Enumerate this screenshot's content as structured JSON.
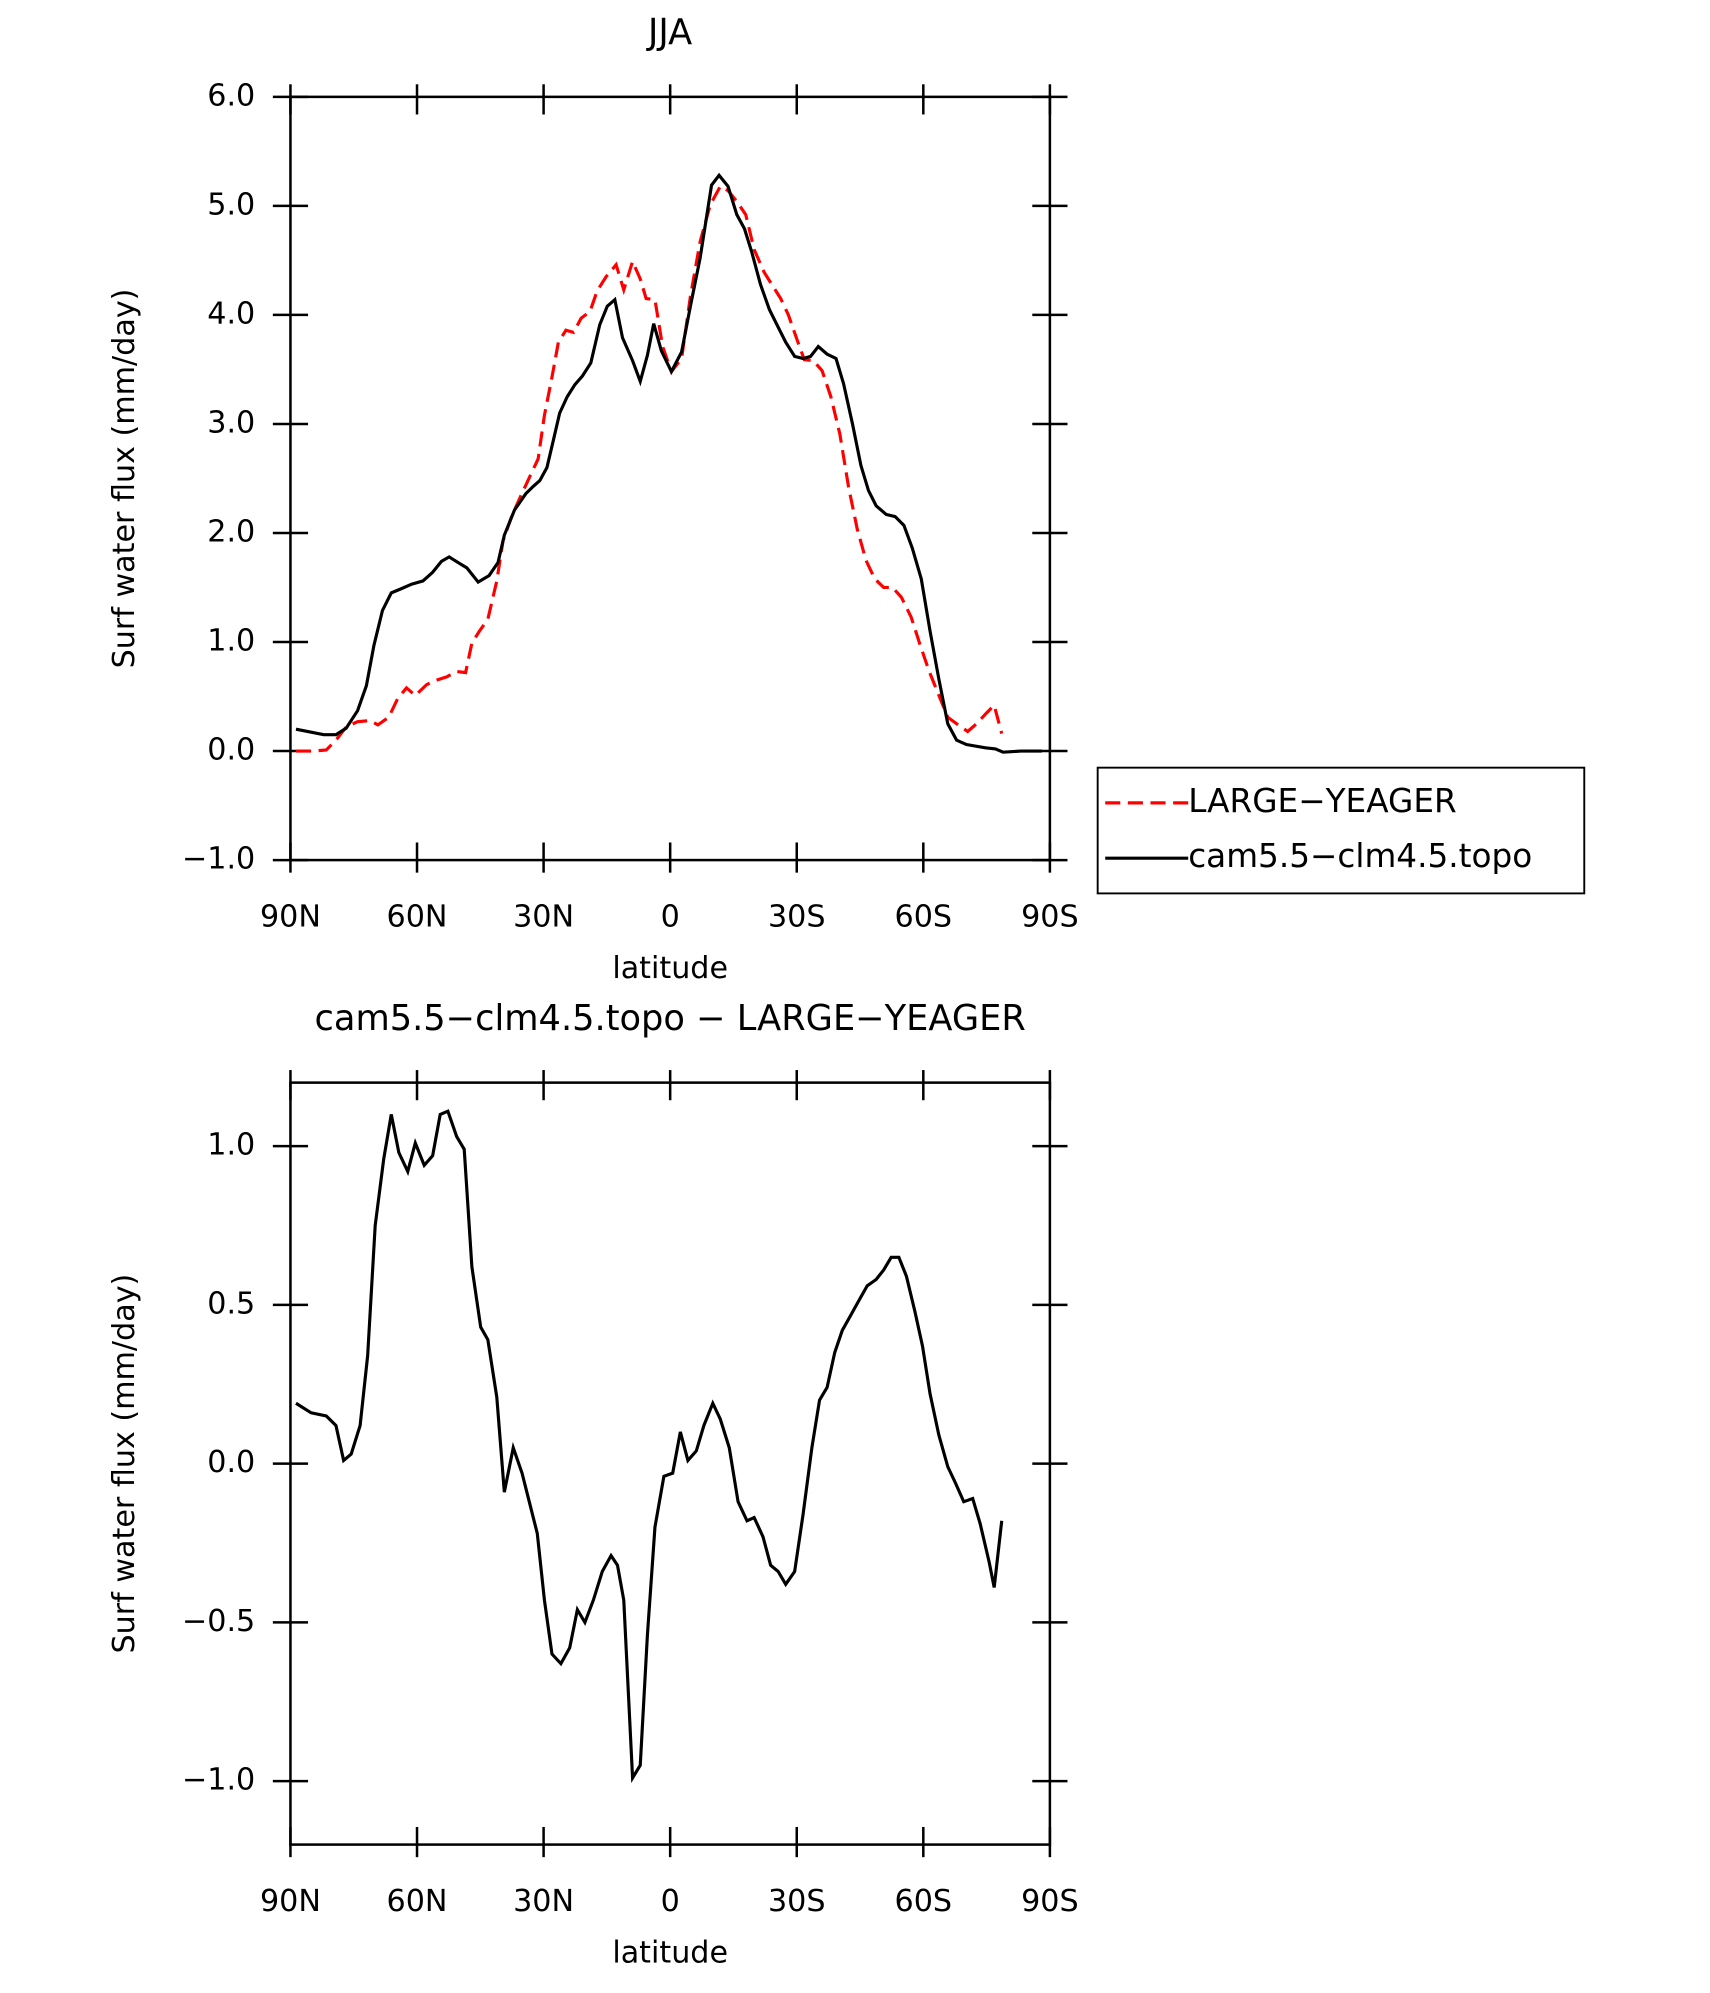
{
  "chart_data": [
    {
      "type": "line",
      "title": "JJA",
      "xlabel": "latitude",
      "ylabel": "Surf water flux (mm/day)",
      "xlim": [
        90,
        -90
      ],
      "ylim": [
        -1,
        6
      ],
      "xticks": [
        {
          "value": 90,
          "label": "90N"
        },
        {
          "value": 60,
          "label": "60N"
        },
        {
          "value": 30,
          "label": "30N"
        },
        0,
        {
          "value": -30,
          "label": "30S"
        },
        {
          "value": -60,
          "label": "60S"
        },
        {
          "value": -90,
          "label": "90S"
        }
      ],
      "yticks": [
        {
          "value": -1,
          "label": "−1.0"
        },
        {
          "value": 0,
          "label": "0.0"
        },
        {
          "value": 1,
          "label": "1.0"
        },
        {
          "value": 2,
          "label": "2.0"
        },
        {
          "value": 3,
          "label": "3.0"
        },
        {
          "value": 4,
          "label": "4.0"
        },
        {
          "value": 5,
          "label": "5.0"
        },
        {
          "value": 6,
          "label": "6.0"
        }
      ],
      "legend": "right",
      "series": [
        {
          "name": "LARGE−YEAGER",
          "color": "#ff0000",
          "dash": true,
          "x": [
            88.7,
            84.5,
            81.5,
            79.2,
            76.8,
            74.1,
            71.1,
            69.3,
            66.7,
            64.6,
            62.5,
            60.4,
            57.7,
            55.4,
            53.0,
            50.6,
            48.5,
            47.0,
            45.2,
            43.2,
            41.1,
            39.6,
            37.5,
            35.4,
            33.0,
            31.3,
            29.8,
            28.0,
            26.5,
            24.7,
            22.9,
            21.1,
            19.0,
            17.3,
            15.2,
            12.8,
            11.0,
            8.9,
            7.1,
            5.7,
            3.6,
            1.8,
            -0.3,
            -2.7,
            -4.8,
            -7.1,
            -9.5,
            -11.9,
            -13.7,
            -15.8,
            -17.9,
            -19.9,
            -22.3,
            -24.4,
            -26.2,
            -28.0,
            -30.1,
            -31.8,
            -33.9,
            -36.0,
            -38.1,
            -40.2,
            -42.3,
            -44.3,
            -46.4,
            -48.5,
            -50.6,
            -52.7,
            -54.8,
            -57.1,
            -59.2,
            -61.3,
            -63.4,
            -65.8,
            -67.9,
            -70.5,
            -72.6,
            -75.0,
            -76.8,
            -78.6
          ],
          "values": [
            0,
            0,
            0.01,
            0.1,
            0.22,
            0.27,
            0.28,
            0.24,
            0.31,
            0.48,
            0.58,
            0.51,
            0.61,
            0.65,
            0.68,
            0.73,
            0.72,
            0.99,
            1.1,
            1.21,
            1.56,
            1.93,
            2.16,
            2.34,
            2.54,
            2.68,
            3.08,
            3.43,
            3.75,
            3.86,
            3.84,
            3.97,
            4.03,
            4.22,
            4.35,
            4.46,
            4.23,
            4.49,
            4.33,
            4.15,
            4.14,
            3.71,
            3.48,
            3.6,
            4.17,
            4.67,
            5.01,
            5.18,
            5.14,
            5.04,
            4.92,
            4.6,
            4.39,
            4.26,
            4.15,
            4.0,
            3.77,
            3.59,
            3.58,
            3.49,
            3.25,
            2.91,
            2.42,
            2.04,
            1.75,
            1.58,
            1.5,
            1.5,
            1.41,
            1.23,
            0.98,
            0.74,
            0.54,
            0.31,
            0.25,
            0.18,
            0.25,
            0.35,
            0.42,
            0.16
          ]
        },
        {
          "name": "cam5.5−clm4.5.topo",
          "color": "#000000",
          "dash": false,
          "x": [
            88.7,
            82.1,
            79.2,
            76.8,
            74.1,
            72.0,
            70.2,
            68.2,
            66.1,
            63.7,
            61.3,
            58.6,
            56.3,
            54.2,
            52.4,
            50.3,
            48.2,
            45.5,
            42.9,
            40.8,
            39.3,
            36.9,
            34.2,
            32.4,
            30.9,
            29.2,
            27.7,
            26.2,
            24.4,
            22.6,
            20.8,
            18.8,
            16.7,
            14.9,
            13.1,
            11.3,
            8.9,
            7.1,
            5.4,
            3.9,
            2.1,
            -0.3,
            -2.7,
            -4.8,
            -7.1,
            -9.8,
            -11.6,
            -13.7,
            -15.8,
            -17.6,
            -19.3,
            -21.4,
            -23.5,
            -25.3,
            -27.4,
            -29.5,
            -31.5,
            -33.3,
            -35.1,
            -37.2,
            -39.3,
            -41.1,
            -43.2,
            -45.2,
            -47.0,
            -48.8,
            -51.2,
            -53.3,
            -55.4,
            -57.4,
            -59.5,
            -61.6,
            -63.7,
            -65.8,
            -67.9,
            -70.2,
            -74.7,
            -77.1,
            -78.9,
            -83.1,
            -88.1
          ],
          "values": [
            0.2,
            0.15,
            0.15,
            0.21,
            0.37,
            0.6,
            0.97,
            1.29,
            1.45,
            1.49,
            1.53,
            1.56,
            1.64,
            1.74,
            1.78,
            1.73,
            1.68,
            1.55,
            1.61,
            1.73,
            1.98,
            2.21,
            2.36,
            2.43,
            2.48,
            2.6,
            2.85,
            3.1,
            3.25,
            3.36,
            3.44,
            3.56,
            3.91,
            4.08,
            4.14,
            3.79,
            3.58,
            3.39,
            3.63,
            3.92,
            3.67,
            3.48,
            3.66,
            4.08,
            4.52,
            5.19,
            5.28,
            5.18,
            4.92,
            4.79,
            4.58,
            4.28,
            4.05,
            3.91,
            3.75,
            3.62,
            3.6,
            3.62,
            3.71,
            3.64,
            3.6,
            3.37,
            3.0,
            2.62,
            2.39,
            2.25,
            2.17,
            2.15,
            2.07,
            1.86,
            1.58,
            1.1,
            0.66,
            0.25,
            0.1,
            0.06,
            0.03,
            0.02,
            -0.01,
            0,
            0
          ]
        }
      ]
    },
    {
      "type": "line",
      "title": "cam5.5−clm4.5.topo − LARGE−YEAGER",
      "xlabel": "latitude",
      "ylabel": "Surf water flux (mm/day)",
      "xlim": [
        90,
        -90
      ],
      "ylim": [
        -1.2,
        1.2
      ],
      "xticks": [
        {
          "value": 90,
          "label": "90N"
        },
        {
          "value": 60,
          "label": "60N"
        },
        {
          "value": 30,
          "label": "30N"
        },
        0,
        {
          "value": -30,
          "label": "30S"
        },
        {
          "value": -60,
          "label": "60S"
        },
        {
          "value": -90,
          "label": "90S"
        }
      ],
      "yticks": [
        {
          "value": -1,
          "label": "−1.0"
        },
        {
          "value": -0.5,
          "label": "−0.5"
        },
        {
          "value": 0,
          "label": "0.0"
        },
        {
          "value": 0.5,
          "label": "0.5"
        },
        {
          "value": 1,
          "label": "1.0"
        }
      ],
      "series": [
        {
          "color": "#000000",
          "dash": false,
          "x": [
            88.7,
            85.1,
            81.5,
            79.2,
            77.4,
            75.6,
            73.5,
            71.7,
            69.9,
            67.9,
            66.1,
            64.3,
            62.2,
            60.4,
            58.3,
            56.3,
            54.5,
            52.7,
            50.6,
            48.8,
            47.0,
            44.9,
            43.2,
            41.1,
            39.3,
            37.2,
            35.1,
            33.6,
            31.5,
            29.8,
            28.0,
            25.9,
            23.8,
            22.0,
            20.2,
            18.2,
            16.1,
            14.0,
            12.5,
            11.0,
            8.9,
            7.1,
            5.4,
            3.6,
            1.5,
            -0.6,
            -2.4,
            -4.2,
            -6.2,
            -8.0,
            -10.1,
            -11.9,
            -14.0,
            -16.1,
            -18.2,
            -19.9,
            -22.0,
            -23.8,
            -25.6,
            -27.4,
            -29.5,
            -31.5,
            -33.6,
            -35.4,
            -37.2,
            -39.0,
            -40.8,
            -42.9,
            -45.0,
            -46.7,
            -48.8,
            -50.6,
            -52.4,
            -54.2,
            -56.0,
            -58.0,
            -59.8,
            -61.6,
            -63.7,
            -65.8,
            -67.6,
            -69.6,
            -71.7,
            -73.5,
            -75.6,
            -76.8,
            -78.6
          ],
          "values": [
            0.19,
            0.16,
            0.15,
            0.12,
            0.01,
            0.03,
            0.12,
            0.34,
            0.75,
            0.96,
            1.1,
            0.98,
            0.92,
            1.01,
            0.94,
            0.97,
            1.1,
            1.11,
            1.03,
            0.99,
            0.62,
            0.43,
            0.39,
            0.21,
            -0.09,
            0.05,
            -0.03,
            -0.11,
            -0.22,
            -0.43,
            -0.6,
            -0.63,
            -0.58,
            -0.46,
            -0.5,
            -0.43,
            -0.34,
            -0.29,
            -0.32,
            -0.43,
            -0.99,
            -0.95,
            -0.54,
            -0.2,
            -0.04,
            -0.03,
            0.1,
            0.01,
            0.04,
            0.12,
            0.19,
            0.14,
            0.05,
            -0.12,
            -0.18,
            -0.17,
            -0.23,
            -0.32,
            -0.34,
            -0.38,
            -0.34,
            -0.16,
            0.05,
            0.2,
            0.24,
            0.35,
            0.42,
            0.47,
            0.52,
            0.56,
            0.58,
            0.61,
            0.65,
            0.65,
            0.59,
            0.48,
            0.37,
            0.22,
            0.09,
            -0.01,
            -0.06,
            -0.12,
            -0.11,
            -0.19,
            -0.31,
            -0.39,
            -0.18
          ]
        }
      ]
    }
  ]
}
